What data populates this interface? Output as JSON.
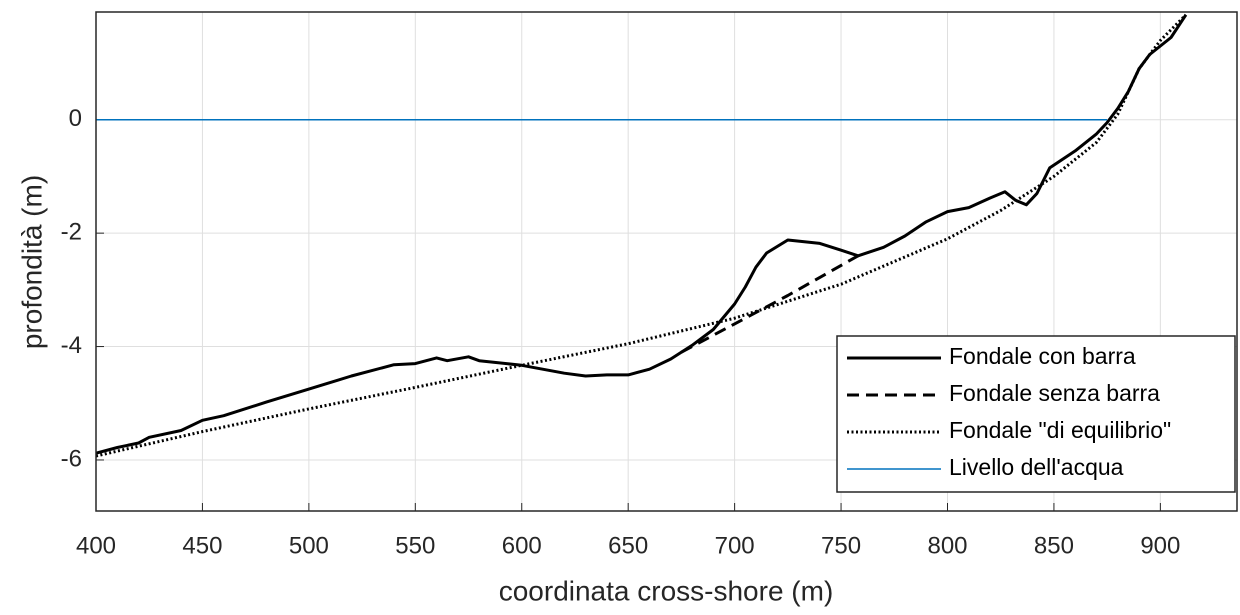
{
  "chart_data": {
    "type": "line",
    "xlabel": "coordinata cross-shore (m)",
    "ylabel": "profondità (m)",
    "xlim": [
      400,
      936
    ],
    "ylim": [
      -6.9,
      1.9
    ],
    "xticks": [
      400,
      450,
      500,
      550,
      600,
      650,
      700,
      750,
      800,
      850,
      900
    ],
    "yticks": [
      -6,
      -4,
      -2,
      0
    ],
    "grid": true,
    "legend": "lower right",
    "series": [
      {
        "name": "Fondale con barra",
        "color": "#000000",
        "style": "solid",
        "x": [
          400,
          410,
          420,
          425,
          440,
          450,
          460,
          480,
          500,
          520,
          540,
          550,
          560,
          565,
          575,
          580,
          600,
          620,
          630,
          640,
          650,
          660,
          670,
          680,
          690,
          700,
          705,
          710,
          715,
          725,
          740,
          750,
          758,
          770,
          780,
          790,
          800,
          810,
          820,
          827,
          832,
          837,
          842,
          848,
          860,
          870,
          875,
          880,
          885,
          890,
          895,
          905,
          912
        ],
        "values": [
          -5.88,
          -5.78,
          -5.7,
          -5.6,
          -5.48,
          -5.3,
          -5.22,
          -4.98,
          -4.75,
          -4.52,
          -4.32,
          -4.3,
          -4.2,
          -4.25,
          -4.18,
          -4.25,
          -4.33,
          -4.47,
          -4.52,
          -4.5,
          -4.5,
          -4.4,
          -4.22,
          -3.98,
          -3.7,
          -3.25,
          -2.95,
          -2.6,
          -2.35,
          -2.12,
          -2.18,
          -2.3,
          -2.4,
          -2.25,
          -2.05,
          -1.8,
          -1.62,
          -1.55,
          -1.38,
          -1.27,
          -1.42,
          -1.5,
          -1.3,
          -0.85,
          -0.55,
          -0.25,
          -0.05,
          0.2,
          0.5,
          0.9,
          1.15,
          1.45,
          1.85
        ]
      },
      {
        "name": "Fondale senza barra",
        "color": "#000000",
        "style": "dashed",
        "x": [
          675,
          700,
          725,
          758
        ],
        "values": [
          -4.1,
          -3.6,
          -3.1,
          -2.4
        ]
      },
      {
        "name": "Fondale \"di equilibrio\"",
        "color": "#000000",
        "style": "dotted",
        "x": [
          400,
          450,
          500,
          550,
          600,
          650,
          700,
          750,
          800,
          825,
          850,
          870,
          880,
          890,
          900,
          912
        ],
        "values": [
          -5.93,
          -5.5,
          -5.1,
          -4.72,
          -4.33,
          -3.95,
          -3.5,
          -2.9,
          -2.1,
          -1.6,
          -1.0,
          -0.4,
          0.1,
          0.9,
          1.4,
          1.85
        ]
      },
      {
        "name": "Livello dell'acqua",
        "color": "#0072bd",
        "style": "thin",
        "x": [
          400,
          875
        ],
        "values": [
          0,
          0
        ]
      }
    ]
  }
}
